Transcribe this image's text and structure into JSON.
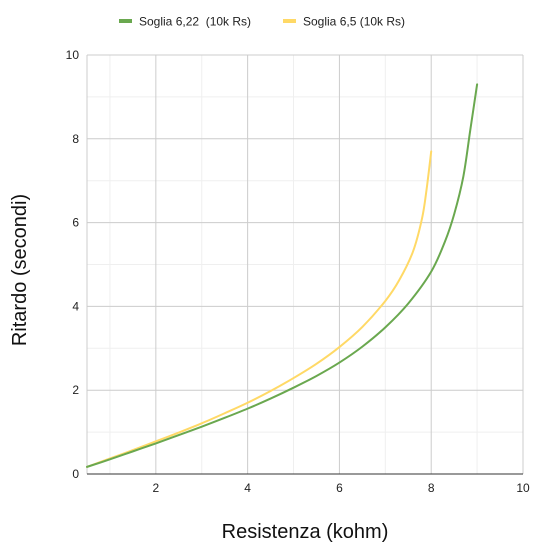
{
  "chart_data": {
    "type": "line",
    "title": "",
    "xlabel": "Resistenza (kohm)",
    "ylabel": "Ritardo (secondi)",
    "xlim": [
      0.5,
      10
    ],
    "ylim": [
      0,
      10
    ],
    "xticks": [
      2,
      4,
      6,
      8,
      10
    ],
    "yticks": [
      0,
      2,
      4,
      6,
      8,
      10
    ],
    "minor_xgrid": [
      1,
      3,
      5,
      7,
      9
    ],
    "minor_ygrid": [
      1,
      3,
      5,
      7,
      9
    ],
    "grid": true,
    "legend_position": "top-left",
    "series": [
      {
        "name": "Soglia 6,22  (10k Rs)",
        "color": "#6aa84f",
        "points": [
          [
            0.5,
            0.17
          ],
          [
            1,
            0.35
          ],
          [
            1.5,
            0.54
          ],
          [
            2,
            0.73
          ],
          [
            2.5,
            0.93
          ],
          [
            3,
            1.13
          ],
          [
            3.5,
            1.34
          ],
          [
            4,
            1.56
          ],
          [
            4.5,
            1.8
          ],
          [
            5,
            2.06
          ],
          [
            5.5,
            2.34
          ],
          [
            6,
            2.66
          ],
          [
            6.5,
            3.04
          ],
          [
            7,
            3.5
          ],
          [
            7.5,
            4.07
          ],
          [
            8,
            4.83
          ],
          [
            8.3,
            5.55
          ],
          [
            8.5,
            6.2
          ],
          [
            8.7,
            7.1
          ],
          [
            8.85,
            8.2
          ],
          [
            9,
            9.3
          ]
        ]
      },
      {
        "name": "Soglia 6,5 (10k Rs)",
        "color": "#ffd966",
        "points": [
          [
            0.5,
            0.17
          ],
          [
            1,
            0.37
          ],
          [
            1.5,
            0.57
          ],
          [
            2,
            0.78
          ],
          [
            2.5,
            0.99
          ],
          [
            3,
            1.21
          ],
          [
            3.5,
            1.45
          ],
          [
            4,
            1.7
          ],
          [
            4.5,
            1.98
          ],
          [
            5,
            2.29
          ],
          [
            5.5,
            2.63
          ],
          [
            6,
            3.03
          ],
          [
            6.5,
            3.51
          ],
          [
            7,
            4.13
          ],
          [
            7.3,
            4.62
          ],
          [
            7.6,
            5.3
          ],
          [
            7.8,
            6.1
          ],
          [
            7.9,
            6.8
          ],
          [
            8,
            7.7
          ]
        ]
      }
    ]
  }
}
